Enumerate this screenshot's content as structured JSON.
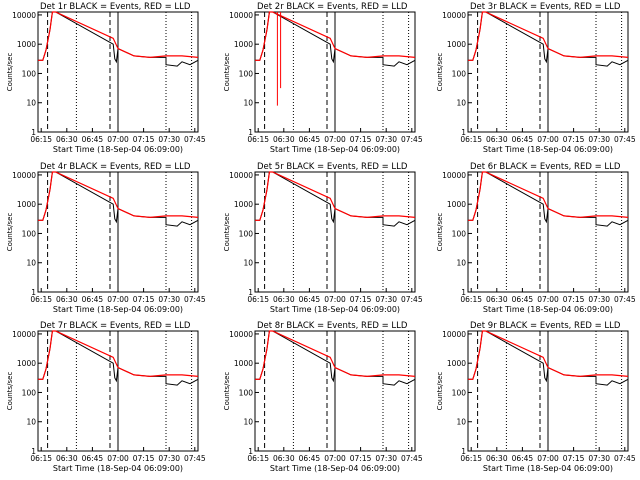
{
  "chart_data": [
    {
      "type": "line",
      "title": "Det 1r BLACK = Events, RED = LLD",
      "ylabel": "Counts/sec",
      "xlabel": "Start Time (18-Sep-04 06:09:00)",
      "tick_labels": [
        "06:15",
        "06:30",
        "06:45",
        "07:00",
        "07:15",
        "07:30",
        "07:45"
      ],
      "yticks": [
        "1",
        "10",
        "100",
        "1000",
        "10000"
      ],
      "series": [
        {
          "color": "#000000"
        },
        {
          "color": "#ff0000"
        }
      ],
      "spike": false
    },
    {
      "type": "line",
      "title": "Det 2r BLACK = Events, RED = LLD",
      "ylabel": "Counts/sec",
      "xlabel": "Start Time (18-Sep-04 06:09:00)",
      "tick_labels": [
        "06:15",
        "06:30",
        "06:45",
        "07:00",
        "07:15",
        "07:30",
        "07:45"
      ],
      "yticks": [
        "1",
        "10",
        "100",
        "1000",
        "10000"
      ],
      "series": [
        {
          "color": "#000000"
        },
        {
          "color": "#ff0000"
        }
      ],
      "spike": true
    },
    {
      "type": "line",
      "title": "Det 3r BLACK = Events, RED = LLD",
      "ylabel": "Counts/sec",
      "xlabel": "Start Time (18-Sep-04 06:09:00)",
      "tick_labels": [
        "06:15",
        "06:30",
        "06:45",
        "07:00",
        "07:15",
        "07:30",
        "07:45"
      ],
      "yticks": [
        "1",
        "10",
        "100",
        "1000",
        "10000"
      ],
      "series": [
        {
          "color": "#000000"
        },
        {
          "color": "#ff0000"
        }
      ],
      "spike": false
    },
    {
      "type": "line",
      "title": "Det 4r BLACK = Events, RED = LLD",
      "ylabel": "Counts/sec",
      "xlabel": "Start Time (18-Sep-04 06:09:00)",
      "tick_labels": [
        "06:15",
        "06:30",
        "06:45",
        "07:00",
        "07:15",
        "07:30",
        "07:45"
      ],
      "yticks": [
        "1",
        "10",
        "100",
        "1000",
        "10000"
      ],
      "series": [
        {
          "color": "#000000"
        },
        {
          "color": "#ff0000"
        }
      ],
      "spike": false
    },
    {
      "type": "line",
      "title": "Det 5r BLACK = Events, RED = LLD",
      "ylabel": "Counts/sec",
      "xlabel": "Start Time (18-Sep-04 06:09:00)",
      "tick_labels": [
        "06:15",
        "06:30",
        "06:45",
        "07:00",
        "07:15",
        "07:30",
        "07:45"
      ],
      "yticks": [
        "1",
        "10",
        "100",
        "1000",
        "10000"
      ],
      "series": [
        {
          "color": "#000000"
        },
        {
          "color": "#ff0000"
        }
      ],
      "spike": false
    },
    {
      "type": "line",
      "title": "Det 6r BLACK = Events, RED = LLD",
      "ylabel": "Counts/sec",
      "xlabel": "Start Time (18-Sep-04 06:09:00)",
      "tick_labels": [
        "06:15",
        "06:30",
        "06:45",
        "07:00",
        "07:15",
        "07:30",
        "07:45"
      ],
      "yticks": [
        "1",
        "10",
        "100",
        "1000",
        "10000"
      ],
      "series": [
        {
          "color": "#000000"
        },
        {
          "color": "#ff0000"
        }
      ],
      "spike": false
    },
    {
      "type": "line",
      "title": "Det 7r BLACK = Events, RED = LLD",
      "ylabel": "Counts/sec",
      "xlabel": "Start Time (18-Sep-04 06:09:00)",
      "tick_labels": [
        "06:15",
        "06:30",
        "06:45",
        "07:00",
        "07:15",
        "07:30",
        "07:45"
      ],
      "yticks": [
        "1",
        "10",
        "100",
        "1000",
        "10000"
      ],
      "series": [
        {
          "color": "#000000"
        },
        {
          "color": "#ff0000"
        }
      ],
      "spike": false
    },
    {
      "type": "line",
      "title": "Det 8r BLACK = Events, RED = LLD",
      "ylabel": "Counts/sec",
      "xlabel": "Start Time (18-Sep-04 06:09:00)",
      "tick_labels": [
        "06:15",
        "06:30",
        "06:45",
        "07:00",
        "07:15",
        "07:30",
        "07:45"
      ],
      "yticks": [
        "1",
        "10",
        "100",
        "1000",
        "10000"
      ],
      "series": [
        {
          "color": "#000000"
        },
        {
          "color": "#ff0000"
        }
      ],
      "spike": false
    },
    {
      "type": "line",
      "title": "Det 9r BLACK = Events, RED = LLD",
      "ylabel": "Counts/sec",
      "xlabel": "Start Time (18-Sep-04 06:09:00)",
      "tick_labels": [
        "06:15",
        "06:30",
        "06:45",
        "07:00",
        "07:15",
        "07:30",
        "07:45"
      ],
      "yticks": [
        "1",
        "10",
        "100",
        "1000",
        "10000"
      ],
      "series": [
        {
          "color": "#000000"
        },
        {
          "color": "#ff0000"
        }
      ],
      "spike": false
    }
  ]
}
